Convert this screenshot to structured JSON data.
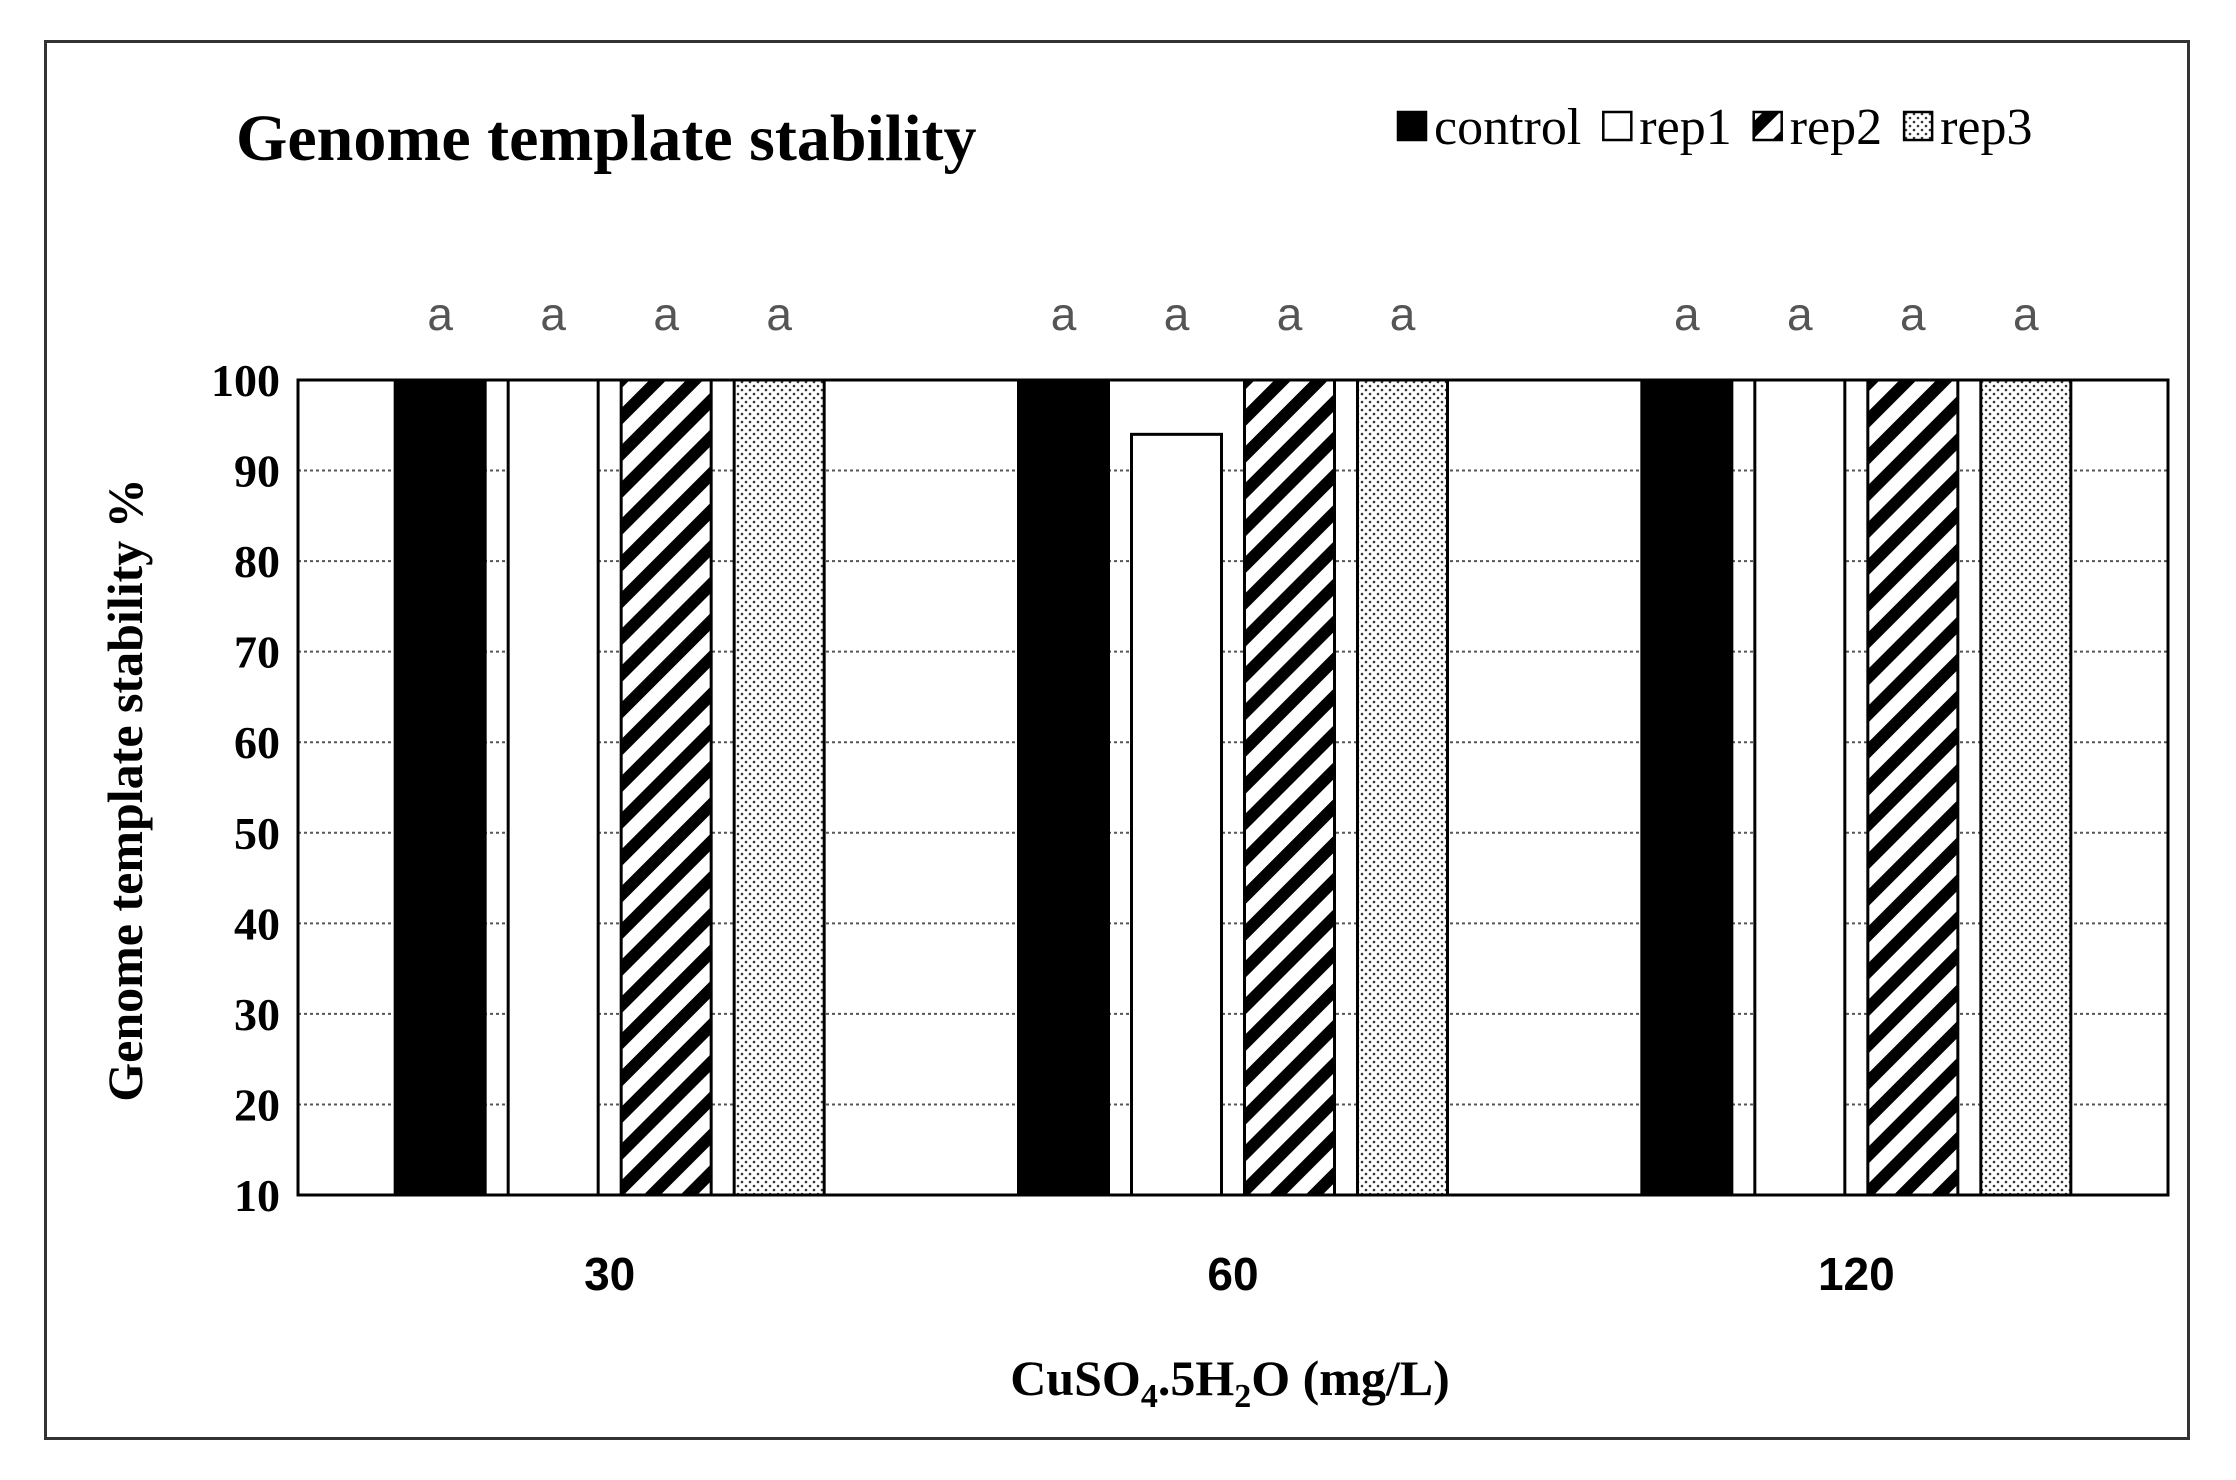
{
  "chart_data": {
    "type": "bar",
    "title": "Genome template stability",
    "xlabel": "CuSO4.5H2O (mg/L)",
    "xlabel_parts": {
      "a": "CuSO",
      "sub1": "4",
      "b": ".5H",
      "sub2": "2",
      "c": "O (mg/L)"
    },
    "ylabel": "Genome template stability %",
    "ylim": [
      10,
      100
    ],
    "yticks": [
      "10",
      "20",
      "30",
      "40",
      "50",
      "60",
      "70",
      "80",
      "90",
      "100"
    ],
    "ytick_values": [
      10,
      20,
      30,
      40,
      50,
      60,
      70,
      80,
      90,
      100
    ],
    "grid": true,
    "legend_position": "top-right",
    "categories": [
      "30",
      "60",
      "120"
    ],
    "series": [
      {
        "name": "control",
        "pattern": "solid",
        "values": [
          100,
          100,
          100
        ],
        "labels": [
          "a",
          "a",
          "a"
        ]
      },
      {
        "name": "rep1",
        "pattern": "open",
        "values": [
          100,
          94,
          100
        ],
        "labels": [
          "a",
          "a",
          "a"
        ]
      },
      {
        "name": "rep2",
        "pattern": "diagonal",
        "values": [
          100,
          100,
          100
        ],
        "labels": [
          "a",
          "a",
          "a"
        ]
      },
      {
        "name": "rep3",
        "pattern": "dotted",
        "values": [
          100,
          100,
          100
        ],
        "labels": [
          "a",
          "a",
          "a"
        ]
      }
    ]
  }
}
